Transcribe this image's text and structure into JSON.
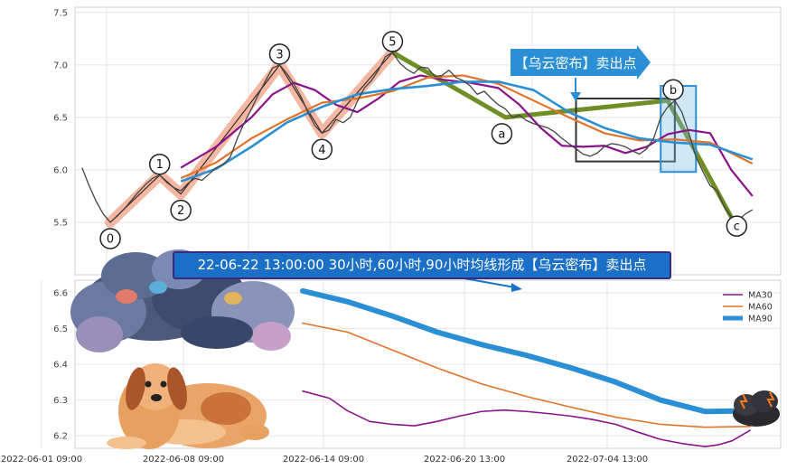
{
  "chart_data": [
    {
      "type": "line",
      "panel": "top",
      "title": "",
      "xlabel": "",
      "ylabel": "",
      "ylim": [
        5.0,
        7.55
      ],
      "y_ticks": [
        "5.5",
        "6.0",
        "6.5",
        "7.0",
        "7.5"
      ],
      "grid": true,
      "price_series": {
        "name": "",
        "points": [
          [
            1,
            6.02
          ],
          [
            2,
            5.85
          ],
          [
            3,
            5.7
          ],
          [
            4,
            5.58
          ],
          [
            5,
            5.5
          ],
          [
            6,
            5.56
          ],
          [
            7,
            5.63
          ],
          [
            8,
            5.71
          ],
          [
            9,
            5.79
          ],
          [
            10,
            5.86
          ],
          [
            11,
            5.92
          ],
          [
            12,
            5.95
          ],
          [
            13,
            5.88
          ],
          [
            14,
            5.83
          ],
          [
            15,
            5.8
          ],
          [
            16,
            5.87
          ],
          [
            17,
            5.92
          ],
          [
            18,
            5.9
          ],
          [
            19,
            5.96
          ],
          [
            20,
            6.02
          ],
          [
            21,
            6.05
          ],
          [
            22,
            6.12
          ],
          [
            23,
            6.3
          ],
          [
            24,
            6.45
          ],
          [
            25,
            6.58
          ],
          [
            26,
            6.72
          ],
          [
            27,
            6.85
          ],
          [
            28,
            6.97
          ],
          [
            29,
            7.0
          ],
          [
            30,
            6.92
          ],
          [
            31,
            6.82
          ],
          [
            32,
            6.7
          ],
          [
            33,
            6.55
          ],
          [
            34,
            6.42
          ],
          [
            35,
            6.35
          ],
          [
            36,
            6.38
          ],
          [
            37,
            6.48
          ],
          [
            38,
            6.45
          ],
          [
            39,
            6.5
          ],
          [
            40,
            6.65
          ],
          [
            41,
            6.78
          ],
          [
            42,
            6.85
          ],
          [
            43,
            6.95
          ],
          [
            44,
            7.08
          ],
          [
            45,
            7.12
          ],
          [
            46,
            7.02
          ],
          [
            47,
            6.96
          ],
          [
            48,
            6.92
          ],
          [
            49,
            6.98
          ],
          [
            50,
            6.97
          ],
          [
            51,
            6.89
          ],
          [
            52,
            6.9
          ],
          [
            53,
            6.95
          ],
          [
            54,
            6.88
          ],
          [
            55,
            6.85
          ],
          [
            56,
            6.8
          ],
          [
            57,
            6.72
          ],
          [
            58,
            6.75
          ],
          [
            59,
            6.68
          ],
          [
            60,
            6.62
          ],
          [
            61,
            6.58
          ],
          [
            62,
            6.5
          ],
          [
            63,
            6.52
          ],
          [
            64,
            6.47
          ],
          [
            65,
            6.44
          ],
          [
            66,
            6.42
          ],
          [
            67,
            6.4
          ],
          [
            68,
            6.36
          ],
          [
            69,
            6.3
          ],
          [
            70,
            6.25
          ],
          [
            71,
            6.2
          ],
          [
            72,
            6.15
          ],
          [
            73,
            6.13
          ],
          [
            74,
            6.16
          ],
          [
            75,
            6.22
          ],
          [
            76,
            6.25
          ],
          [
            77,
            6.24
          ],
          [
            78,
            6.22
          ],
          [
            79,
            6.18
          ],
          [
            80,
            6.15
          ],
          [
            81,
            6.2
          ],
          [
            82,
            6.3
          ],
          [
            83,
            6.5
          ],
          [
            84,
            6.6
          ],
          [
            85,
            6.66
          ],
          [
            86,
            6.55
          ],
          [
            87,
            6.35
          ],
          [
            88,
            6.12
          ],
          [
            89,
            5.98
          ],
          [
            90,
            5.85
          ],
          [
            91,
            5.8
          ],
          [
            92,
            5.65
          ],
          [
            93,
            5.55
          ],
          [
            94,
            5.52
          ],
          [
            95,
            5.58
          ],
          [
            96,
            5.62
          ]
        ]
      },
      "moving_averages": [
        {
          "name": "MA30",
          "color": "#8a138c",
          "points": [
            [
              15,
              6.02
            ],
            [
              20,
              6.22
            ],
            [
              25,
              6.5
            ],
            [
              28,
              6.72
            ],
            [
              31,
              6.83
            ],
            [
              34,
              6.76
            ],
            [
              37,
              6.62
            ],
            [
              40,
              6.55
            ],
            [
              43,
              6.68
            ],
            [
              46,
              6.84
            ],
            [
              49,
              6.9
            ],
            [
              52,
              6.86
            ],
            [
              56,
              6.83
            ],
            [
              60,
              6.78
            ],
            [
              63,
              6.62
            ],
            [
              66,
              6.4
            ],
            [
              69,
              6.23
            ],
            [
              72,
              6.22
            ],
            [
              75,
              6.23
            ],
            [
              78,
              6.16
            ],
            [
              81,
              6.22
            ],
            [
              84,
              6.34
            ],
            [
              87,
              6.38
            ],
            [
              90,
              6.35
            ],
            [
              93,
              6.0
            ],
            [
              96,
              5.75
            ]
          ]
        },
        {
          "name": "MA60",
          "color": "#e0742a",
          "points": [
            [
              15,
              5.92
            ],
            [
              20,
              6.07
            ],
            [
              25,
              6.3
            ],
            [
              30,
              6.48
            ],
            [
              35,
              6.64
            ],
            [
              40,
              6.68
            ],
            [
              45,
              6.75
            ],
            [
              50,
              6.88
            ],
            [
              55,
              6.9
            ],
            [
              60,
              6.82
            ],
            [
              65,
              6.66
            ],
            [
              70,
              6.5
            ],
            [
              75,
              6.35
            ],
            [
              80,
              6.28
            ],
            [
              85,
              6.29
            ],
            [
              90,
              6.26
            ],
            [
              96,
              6.06
            ]
          ]
        },
        {
          "name": "MA90",
          "color": "#2a8fd4",
          "points": [
            [
              15,
              5.89
            ],
            [
              20,
              6.01
            ],
            [
              25,
              6.22
            ],
            [
              30,
              6.45
            ],
            [
              35,
              6.6
            ],
            [
              40,
              6.72
            ],
            [
              45,
              6.77
            ],
            [
              50,
              6.8
            ],
            [
              55,
              6.84
            ],
            [
              60,
              6.84
            ],
            [
              65,
              6.76
            ],
            [
              70,
              6.55
            ],
            [
              75,
              6.4
            ],
            [
              80,
              6.3
            ],
            [
              85,
              6.26
            ],
            [
              90,
              6.24
            ],
            [
              96,
              6.1
            ]
          ]
        }
      ],
      "wave_points": [
        {
          "label": "0",
          "x": 5,
          "y": 5.5
        },
        {
          "label": "1",
          "x": 12,
          "y": 5.95
        },
        {
          "label": "2",
          "x": 15,
          "y": 5.77
        },
        {
          "label": "3",
          "x": 29,
          "y": 7.0
        },
        {
          "label": "4",
          "x": 35,
          "y": 6.35
        },
        {
          "label": "5",
          "x": 45,
          "y": 7.12
        },
        {
          "label": "a",
          "x": 61,
          "y": 6.5
        },
        {
          "label": "b",
          "x": 84,
          "y": 6.66
        },
        {
          "label": "c",
          "x": 93,
          "y": 5.55
        }
      ],
      "annotation": "【乌云密布】卖出点"
    },
    {
      "type": "line",
      "panel": "bottom",
      "title": "",
      "xlabel": "",
      "ylabel": "",
      "ylim": [
        6.165,
        6.635
      ],
      "y_ticks": [
        "6.2",
        "6.3",
        "6.4",
        "6.5",
        "6.6"
      ],
      "x_ticks": [
        "2022-06-01 09:00",
        "2022-06-08 09:00",
        "2022-06-14 09:00",
        "2022-06-20 13:00",
        "2022-07-04 13:00"
      ],
      "grid": true,
      "legend_position": "top-right",
      "series": [
        {
          "name": "MA30",
          "color": "#8a138c",
          "points": [
            [
              0,
              6.325
            ],
            [
              6,
              6.305
            ],
            [
              10,
              6.27
            ],
            [
              15,
              6.24
            ],
            [
              20,
              6.232
            ],
            [
              25,
              6.228
            ],
            [
              30,
              6.24
            ],
            [
              35,
              6.255
            ],
            [
              40,
              6.268
            ],
            [
              45,
              6.272
            ],
            [
              50,
              6.268
            ],
            [
              55,
              6.262
            ],
            [
              60,
              6.255
            ],
            [
              65,
              6.245
            ],
            [
              70,
              6.232
            ],
            [
              75,
              6.21
            ],
            [
              80,
              6.19
            ],
            [
              85,
              6.178
            ],
            [
              90,
              6.17
            ],
            [
              93,
              6.175
            ],
            [
              96,
              6.186
            ],
            [
              100,
              6.215
            ]
          ]
        },
        {
          "name": "MA60",
          "color": "#e0742a",
          "points": [
            [
              0,
              6.515
            ],
            [
              10,
              6.49
            ],
            [
              20,
              6.44
            ],
            [
              30,
              6.39
            ],
            [
              40,
              6.345
            ],
            [
              50,
              6.31
            ],
            [
              60,
              6.28
            ],
            [
              70,
              6.252
            ],
            [
              80,
              6.232
            ],
            [
              90,
              6.224
            ],
            [
              100,
              6.226
            ]
          ]
        },
        {
          "name": "MA90",
          "color": "#2a8fd4",
          "points": [
            [
              0,
              6.605
            ],
            [
              10,
              6.575
            ],
            [
              20,
              6.535
            ],
            [
              30,
              6.49
            ],
            [
              40,
              6.455
            ],
            [
              50,
              6.425
            ],
            [
              60,
              6.39
            ],
            [
              70,
              6.35
            ],
            [
              80,
              6.3
            ],
            [
              90,
              6.268
            ],
            [
              100,
              6.27
            ]
          ]
        }
      ]
    }
  ],
  "banner": {
    "text": "22-06-22 13:00:00 30小时,60小时,90小时均线形成【乌云密布】卖出点"
  },
  "callout": {
    "label": "【乌云密布】卖出点"
  }
}
